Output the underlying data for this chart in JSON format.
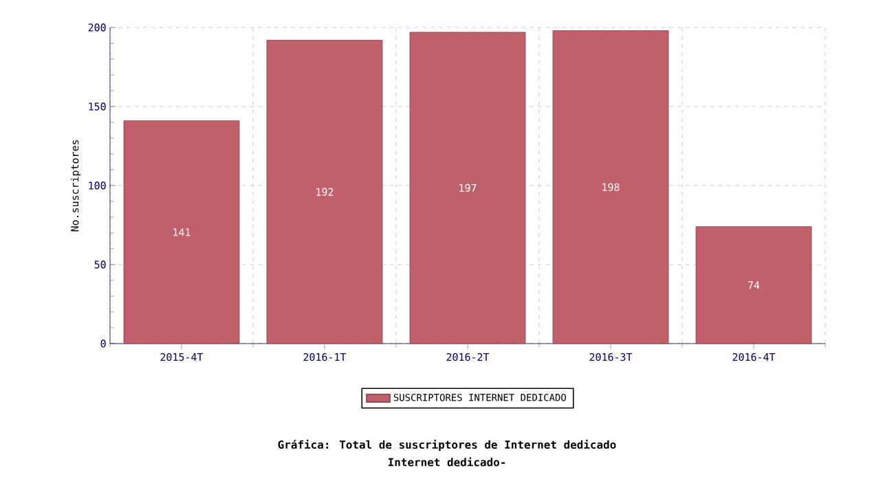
{
  "chart_data": {
    "type": "bar",
    "title": "Gráfica: Total de suscriptores de Internet dedicado",
    "subtitle": "Internet dedicado-",
    "ylabel": "No.suscriptores",
    "categories": [
      "2015-4T",
      "2016-1T",
      "2016-2T",
      "2016-3T",
      "2016-4T"
    ],
    "series": [
      {
        "name": "SUSCRIPTORES INTERNET DEDICADO",
        "color": "#c0606a",
        "values": [
          141,
          192,
          197,
          198,
          74
        ]
      }
    ],
    "ylim": [
      0,
      200
    ],
    "yticks": [
      0,
      50,
      100,
      150,
      200
    ],
    "grid": true,
    "legend": "bottom",
    "data_labels": true
  }
}
